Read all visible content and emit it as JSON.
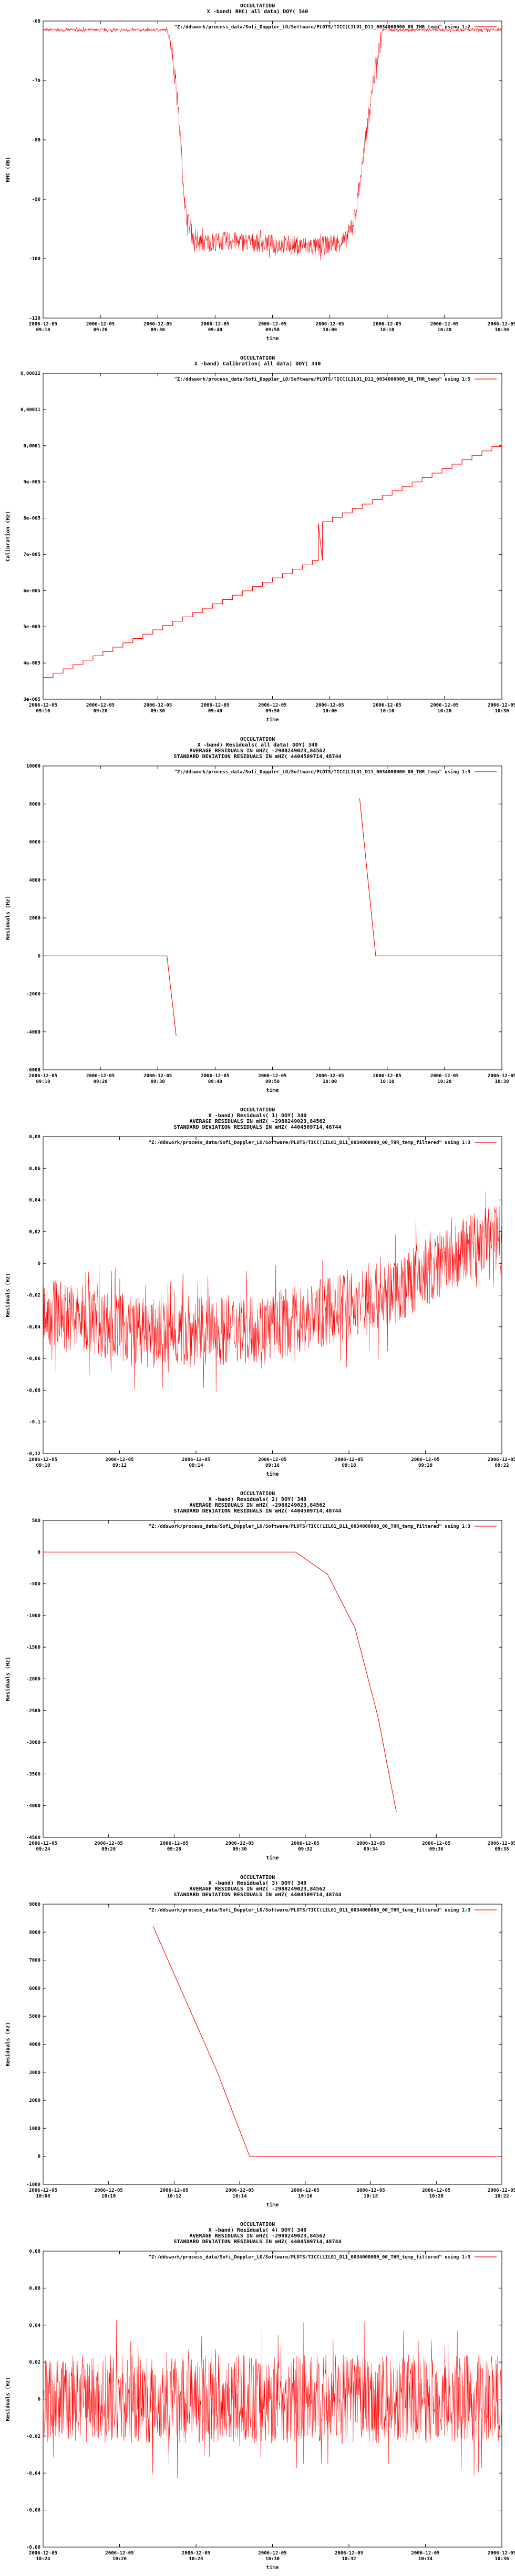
{
  "colors": {
    "series": "#ff0000",
    "frame": "#000000",
    "grid": "#bfbfbf"
  },
  "panels_y": [
    0,
    670,
    1395,
    2100,
    2830,
    3560,
    4220
  ],
  "chart_data": [
    {
      "type": "line",
      "title_lines": [
        "OCCULTATION",
        "X -band( RHC) all data) DOY( 340"
      ],
      "legend": "\"Z:/ddswork/process_data/Sofi_Doppler_LO/Software/PLOTS/TICC(LILO1_D11_0034000000_00_THR_temp\" using 1:2",
      "ylabel": "RHC (dB)",
      "xlabel": "time",
      "yticks": [
        "-60",
        "-70",
        "-80",
        "-90",
        "-100",
        "-110"
      ],
      "ylim": [
        -110,
        -60
      ],
      "xticks": [
        [
          "2006-12-05",
          "09:10"
        ],
        [
          "2006-12-05",
          "09:20"
        ],
        [
          "2006-12-05",
          "09:30"
        ],
        [
          "2006-12-05",
          "09:40"
        ],
        [
          "2006-12-05",
          "09:50"
        ],
        [
          "2006-12-05",
          "10:00"
        ],
        [
          "2006-12-05",
          "10:10"
        ],
        [
          "2006-12-05",
          "10:20"
        ],
        [
          "2006-12-05",
          "10:30"
        ]
      ],
      "x": [
        0,
        0.27,
        0.28,
        0.295,
        0.31,
        0.33,
        0.4,
        0.5,
        0.6,
        0.66,
        0.68,
        0.7,
        0.72,
        0.74,
        1.0
      ],
      "y": [
        -61.5,
        -61.5,
        -64,
        -75,
        -92,
        -97.5,
        -97,
        -97.5,
        -98,
        -97,
        -93,
        -82,
        -70,
        -61.5,
        -61.5
      ],
      "noise": 1.6
    },
    {
      "type": "line",
      "title_lines": [
        "OCCULTATION",
        "X -band) Calibration( all data) DOY( 340"
      ],
      "legend": "\"Z:/ddswork/process_data/Sofi_Doppler_LO/Software/PLOTS/TICC(LILO1_D11_0034000000_00_THR_temp\" using 1:5",
      "ylabel": "Calibration (Hz)",
      "xlabel": "time",
      "yticks": [
        "0,00012",
        "0,00011",
        "0,0001",
        "9e-005",
        "8e-005",
        "7e-005",
        "6e-005",
        "5e-005",
        "4e-005",
        "3e-005"
      ],
      "ylim": [
        3e-05,
        0.00012
      ],
      "xticks": [
        [
          "2006-12-05",
          "09:10"
        ],
        [
          "2006-12-05",
          "09:20"
        ],
        [
          "2006-12-05",
          "09:30"
        ],
        [
          "2006-12-05",
          "09:40"
        ],
        [
          "2006-12-05",
          "09:50"
        ],
        [
          "2006-12-05",
          "10:00"
        ],
        [
          "2006-12-05",
          "10:10"
        ],
        [
          "2006-12-05",
          "10:20"
        ],
        [
          "2006-12-05",
          "10:30"
        ]
      ],
      "x": [
        0,
        0.6,
        0.6,
        1.0
      ],
      "y": [
        3.6e-05,
        6.9e-05,
        7.85e-05,
        0.000101
      ],
      "steps": 46
    },
    {
      "type": "line",
      "title_lines": [
        "OCCULTATION",
        "X -band) Residuals( all data) DOY( 340",
        "AVERAGE RESIDUALS IN mHZ( -2988249023,84562",
        "STANDARD DEVIATION RESIDUALS IN mHZ( 4404509714,48744"
      ],
      "legend": "\"Z:/ddswork/process_data/Sofi_Doppler_LO/Software/PLOTS/TICC(LILO1_D11_0034000000_00_THR_temp\" using 1:3",
      "ylabel": "Residuals (Hz)",
      "xlabel": "time",
      "yticks": [
        "10000",
        "8000",
        "6000",
        "4000",
        "2000",
        "0",
        "-2000",
        "-4000",
        "-6000"
      ],
      "ylim": [
        -6000,
        10000
      ],
      "xticks": [
        [
          "2006-12-05",
          "09:10"
        ],
        [
          "2006-12-05",
          "09:20"
        ],
        [
          "2006-12-05",
          "09:30"
        ],
        [
          "2006-12-05",
          "09:40"
        ],
        [
          "2006-12-05",
          "09:50"
        ],
        [
          "2006-12-05",
          "10:00"
        ],
        [
          "2006-12-05",
          "10:10"
        ],
        [
          "2006-12-05",
          "10:20"
        ],
        [
          "2006-12-05",
          "10:30"
        ]
      ],
      "segments": [
        {
          "x": [
            0,
            0.27,
            0.29
          ],
          "y": [
            0,
            0,
            -4200
          ]
        },
        {
          "x": [
            0.69,
            0.725,
            1.0
          ],
          "y": [
            8300,
            0,
            0
          ]
        }
      ]
    },
    {
      "type": "line",
      "title_lines": [
        "OCCULTATION",
        "X -band) Residuals( 1) DOY( 340",
        "AVERAGE RESIDUALS IN mHZ( -2988249023,84562",
        "STANDARD DEVIATION RESIDUALS IN mHZ( 4404509714,48744"
      ],
      "legend": "\"Z:/ddswork/process_data/Sofi_Doppler_LO/Software/PLOTS/TICC(LILO1_D11_0034000000_00_THR_temp_filtered\" using 1:3",
      "ylabel": "Residuals (Hz)",
      "xlabel": "time",
      "yticks": [
        "0,08",
        "0,06",
        "0,04",
        "0,02",
        "0",
        "-0,02",
        "-0,04",
        "-0,06",
        "-0,08",
        "-0,1",
        "-0,12"
      ],
      "ylim": [
        -0.12,
        0.08
      ],
      "xticks": [
        [
          "2006-12-05",
          "09:10"
        ],
        [
          "2006-12-05",
          "09:12"
        ],
        [
          "2006-12-05",
          "09:14"
        ],
        [
          "2006-12-05",
          "09:16"
        ],
        [
          "2006-12-05",
          "09:18"
        ],
        [
          "2006-12-05",
          "09:20"
        ],
        [
          "2006-12-05",
          "09:22"
        ]
      ],
      "x": [
        0,
        0.25,
        0.5,
        0.75,
        1.0
      ],
      "y": [
        -0.03,
        -0.045,
        -0.04,
        -0.02,
        0.02
      ],
      "noise": 0.022
    },
    {
      "type": "line",
      "title_lines": [
        "OCCULTATION",
        "X -band) Residuals( 2) DOY( 340",
        "AVERAGE RESIDUALS IN mHZ( -2988249023,84562",
        "STANDARD DEVIATION RESIDUALS IN mHZ( 4404509714,48744"
      ],
      "legend": "\"Z:/ddswork/process_data/Sofi_Doppler_LO/Software/PLOTS/TICC(LILO1_D11_0034000000_00_THR_temp_filtered\" using 1:3",
      "ylabel": "Residuals (Hz)",
      "xlabel": "time",
      "yticks": [
        "500",
        "0",
        "-500",
        "-1000",
        "-1500",
        "-2000",
        "-2500",
        "-3000",
        "-3500",
        "-4000",
        "-4500"
      ],
      "ylim": [
        -4500,
        500
      ],
      "xticks": [
        [
          "2006-12-05",
          "09:24"
        ],
        [
          "2006-12-05",
          "09:26"
        ],
        [
          "2006-12-05",
          "09:28"
        ],
        [
          "2006-12-05",
          "09:30"
        ],
        [
          "2006-12-05",
          "09:32"
        ],
        [
          "2006-12-05",
          "09:34"
        ],
        [
          "2006-12-05",
          "09:36"
        ],
        [
          "2006-12-05",
          "09:38"
        ]
      ],
      "x": [
        0,
        0.55,
        0.62,
        0.68,
        0.73,
        0.77
      ],
      "y": [
        0,
        0,
        -350,
        -1200,
        -2600,
        -4100
      ]
    },
    {
      "type": "line",
      "title_lines": [
        "OCCULTATION",
        "X -band) Residuals( 3) DOY( 340",
        "AVERAGE RESIDUALS IN mHZ( -2988249023,84562",
        "STANDARD DEVIATION RESIDUALS IN mHZ( 4404509714,48744"
      ],
      "legend": "\"Z:/ddswork/process_data/Sofi_Doppler_LO/Software/PLOTS/TICC(LILO1_D11_0034000000_00_THR_temp_filtered\" using 1:3",
      "ylabel": "Residuals (Hz)",
      "xlabel": "time",
      "yticks": [
        "9000",
        "8000",
        "7000",
        "6000",
        "5000",
        "4000",
        "3000",
        "2000",
        "1000",
        "0",
        "-1000"
      ],
      "ylim": [
        -1000,
        9000
      ],
      "xticks": [
        [
          "2006-12-05",
          "10:08"
        ],
        [
          "2006-12-05",
          "10:10"
        ],
        [
          "2006-12-05",
          "10:12"
        ],
        [
          "2006-12-05",
          "10:14"
        ],
        [
          "2006-12-05",
          "10:16"
        ],
        [
          "2006-12-05",
          "10:18"
        ],
        [
          "2006-12-05",
          "10:20"
        ],
        [
          "2006-12-05",
          "10:22"
        ]
      ],
      "x": [
        0.24,
        0.38,
        0.45,
        1.0
      ],
      "y": [
        8200,
        3000,
        0,
        0
      ]
    },
    {
      "type": "line",
      "title_lines": [
        "OCCULTATION",
        "X -band) Residuals( 4) DOY( 340",
        "AVERAGE RESIDUALS IN mHZ( -2988249023,84562",
        "STANDARD DEVIATION RESIDUALS IN mHZ( 4404509714,48744"
      ],
      "legend": "\"Z:/ddswork/process_data/Sofi_Doppler_LO/Software/PLOTS/TICC(LILO1_D11_0034000000_00_THR_temp_filtered\" using 1:3",
      "ylabel": "Residuals (Hz)",
      "xlabel": "time",
      "yticks": [
        "0,08",
        "0,06",
        "0,04",
        "0,02",
        "0",
        "-0,02",
        "-0,04",
        "-0,06",
        "-0,08"
      ],
      "ylim": [
        -0.08,
        0.08
      ],
      "xticks": [
        [
          "2006-12-05",
          "10:24"
        ],
        [
          "2006-12-05",
          "10:26"
        ],
        [
          "2006-12-05",
          "10:28"
        ],
        [
          "2006-12-05",
          "10:30"
        ],
        [
          "2006-12-05",
          "10:32"
        ],
        [
          "2006-12-05",
          "10:34"
        ],
        [
          "2006-12-05",
          "10:36"
        ]
      ],
      "x": [
        0,
        1.0
      ],
      "y": [
        0,
        0
      ],
      "noise": 0.024
    }
  ]
}
